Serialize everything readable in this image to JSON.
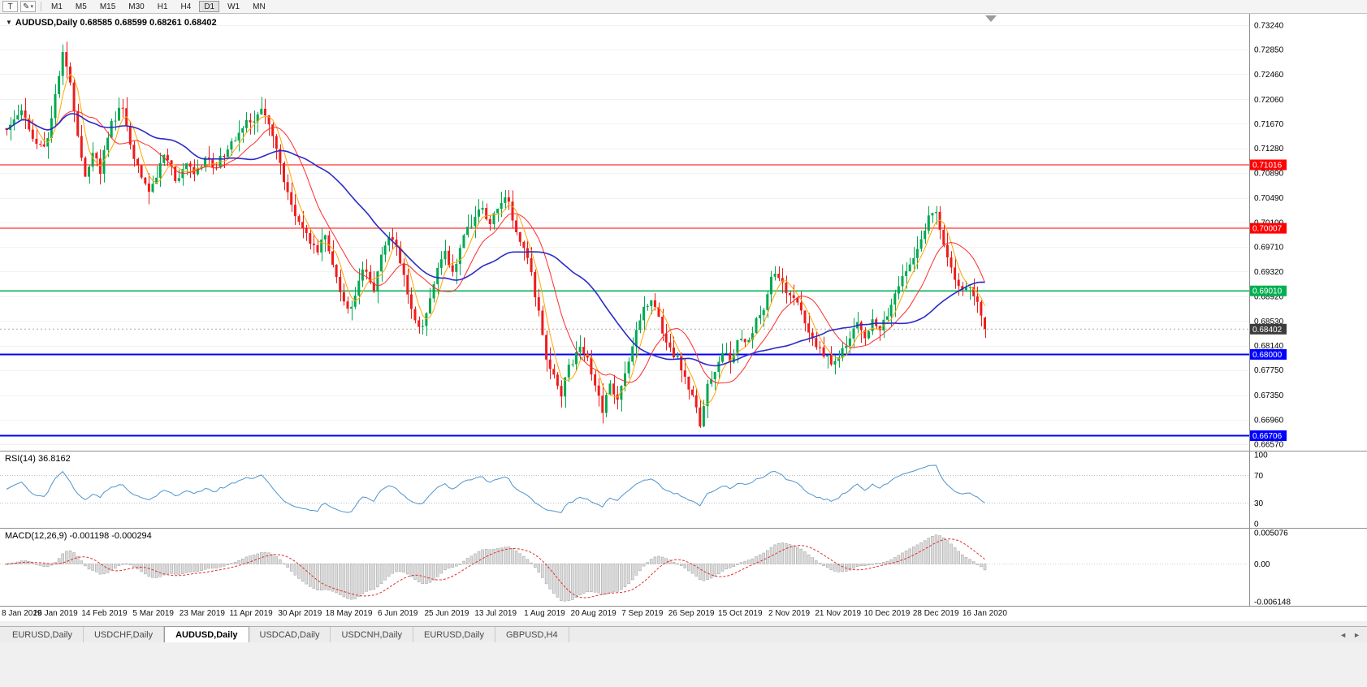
{
  "toolbar": {
    "text_tool_label": "T",
    "draw_tool_glyph": "✎",
    "dropdown_glyph": "▾",
    "timeframes": [
      {
        "label": "M1",
        "active": false
      },
      {
        "label": "M5",
        "active": false
      },
      {
        "label": "M15",
        "active": false
      },
      {
        "label": "M30",
        "active": false
      },
      {
        "label": "H1",
        "active": false
      },
      {
        "label": "H4",
        "active": false
      },
      {
        "label": "D1",
        "active": true
      },
      {
        "label": "W1",
        "active": false
      },
      {
        "label": "MN",
        "active": false
      }
    ]
  },
  "main_chart": {
    "collapse_icon": "▼",
    "symbol_line": "AUDUSD,Daily 0.68585 0.68599 0.68261 0.68402",
    "price_axis": [
      "0.73240",
      "0.72850",
      "0.72460",
      "0.72060",
      "0.71670",
      "0.71280",
      "0.70890",
      "0.70490",
      "0.70100",
      "0.69710",
      "0.69320",
      "0.68920",
      "0.68530",
      "0.68140",
      "0.67750",
      "0.67350",
      "0.66960",
      "0.66570"
    ],
    "levels": [
      {
        "price": "0.71016",
        "value": 0.71016,
        "color": "#FF0000",
        "width": 1.2,
        "role": "resistance"
      },
      {
        "price": "0.70007",
        "value": 0.70007,
        "color": "#FF0000",
        "width": 1.2,
        "role": "resistance"
      },
      {
        "price": "0.69010",
        "value": 0.6901,
        "color": "#00B050",
        "width": 1.5,
        "role": "pivot"
      },
      {
        "price": "0.68000",
        "value": 0.68,
        "color": "#0000FF",
        "width": 1.8,
        "role": "support"
      },
      {
        "price": "0.66706",
        "value": 0.66706,
        "color": "#0000FF",
        "width": 1.8,
        "role": "support"
      }
    ],
    "current_price": {
      "label": "0.68402",
      "value": 0.68402,
      "tag_color": "#3C3C3C"
    },
    "colors": {
      "bull": "#00A94F",
      "bear": "#EE1C1C"
    },
    "moving_averages": [
      {
        "period": 5,
        "color": "#FFA500",
        "width": 1
      },
      {
        "period": 13,
        "color": "#FF2B2B",
        "width": 1
      },
      {
        "period": 34,
        "color": "#2B2BC8",
        "width": 1.6
      }
    ]
  },
  "rsi_panel": {
    "label": "RSI(14) 36.8162",
    "value": 36.8162,
    "period": 14,
    "axis": [
      {
        "label": "100",
        "value": 100
      },
      {
        "label": "70",
        "value": 70
      },
      {
        "label": "30",
        "value": 30
      },
      {
        "label": "0",
        "value": 0
      }
    ],
    "guides": [
      70,
      30
    ],
    "line_color": "#4F94CD"
  },
  "macd_panel": {
    "label": "MACD(12,26,9) -0.001198 -0.000294",
    "main_value": -0.001198,
    "signal_value": -0.000294,
    "axis": [
      {
        "label": "0.005076",
        "value": 0.005076
      },
      {
        "label": "0.00",
        "value": 0
      },
      {
        "label": "-0.006148",
        "value": -0.006148
      }
    ],
    "histogram_fill": "#DBDBDB",
    "histogram_stroke": "#A0A0A0",
    "signal_color": "#E03030"
  },
  "time_axis": [
    "8 Jan 2019",
    "26 Jan 2019",
    "14 Feb 2019",
    "5 Mar 2019",
    "23 Mar 2019",
    "11 Apr 2019",
    "30 Apr 2019",
    "18 May 2019",
    "6 Jun 2019",
    "25 Jun 2019",
    "13 Jul 2019",
    "1 Aug 2019",
    "20 Aug 2019",
    "7 Sep 2019",
    "26 Sep 2019",
    "15 Oct 2019",
    "2 Nov 2019",
    "21 Nov 2019",
    "10 Dec 2019",
    "28 Dec 2019",
    "16 Jan 2020"
  ],
  "tabs": [
    {
      "label": "EURUSD,Daily",
      "active": false
    },
    {
      "label": "USDCHF,Daily",
      "active": false
    },
    {
      "label": "AUDUSD,Daily",
      "active": true
    },
    {
      "label": "USDCAD,Daily",
      "active": false
    },
    {
      "label": "USDCNH,Daily",
      "active": false
    },
    {
      "label": "EURUSD,Daily",
      "active": false
    },
    {
      "label": "GBPUSD,H4",
      "active": false
    }
  ],
  "tab_scroll": {
    "left": "◄",
    "right": "►"
  },
  "chart_data": {
    "type": "candlestick",
    "symbol": "AUDUSD",
    "timeframe": "Daily",
    "last_ohlc": {
      "open": 0.68585,
      "high": 0.68599,
      "low": 0.68261,
      "close": 0.68402
    },
    "visible_price_range": [
      0.6657,
      0.7324
    ],
    "visible_date_range": [
      "8 Jan 2019",
      "16 Jan 2020"
    ],
    "horizontal_levels": [
      0.71016,
      0.70007,
      0.6901,
      0.68,
      0.66706
    ],
    "indicators": [
      "RSI(14)=36.8162",
      "MACD(12,26,9)=-0.001198/-0.000294"
    ],
    "price_path": [
      [
        8,
        0.716
      ],
      [
        25,
        0.719
      ],
      [
        40,
        0.715
      ],
      [
        55,
        0.7125
      ],
      [
        68,
        0.721
      ],
      [
        78,
        0.7292
      ],
      [
        88,
        0.722
      ],
      [
        95,
        0.715
      ],
      [
        105,
        0.7085
      ],
      [
        115,
        0.7125
      ],
      [
        123,
        0.709
      ],
      [
        135,
        0.7165
      ],
      [
        150,
        0.7195
      ],
      [
        160,
        0.7135
      ],
      [
        172,
        0.7085
      ],
      [
        185,
        0.7055
      ],
      [
        195,
        0.7095
      ],
      [
        205,
        0.712
      ],
      [
        215,
        0.7075
      ],
      [
        228,
        0.7105
      ],
      [
        240,
        0.7085
      ],
      [
        252,
        0.7115
      ],
      [
        265,
        0.7095
      ],
      [
        280,
        0.713
      ],
      [
        295,
        0.7155
      ],
      [
        310,
        0.7175
      ],
      [
        325,
        0.719
      ],
      [
        335,
        0.715
      ],
      [
        345,
        0.71
      ],
      [
        355,
        0.705
      ],
      [
        365,
        0.7015
      ],
      [
        378,
        0.699
      ],
      [
        390,
        0.696
      ],
      [
        400,
        0.699
      ],
      [
        410,
        0.694
      ],
      [
        420,
        0.6895
      ],
      [
        430,
        0.687
      ],
      [
        440,
        0.691
      ],
      [
        450,
        0.694
      ],
      [
        460,
        0.6905
      ],
      [
        470,
        0.696
      ],
      [
        480,
        0.6985
      ],
      [
        490,
        0.696
      ],
      [
        500,
        0.6905
      ],
      [
        510,
        0.686
      ],
      [
        518,
        0.684
      ],
      [
        528,
        0.688
      ],
      [
        538,
        0.693
      ],
      [
        548,
        0.696
      ],
      [
        558,
        0.6935
      ],
      [
        568,
        0.6975
      ],
      [
        580,
        0.701
      ],
      [
        592,
        0.7035
      ],
      [
        605,
        0.701
      ],
      [
        615,
        0.7045
      ],
      [
        625,
        0.705
      ],
      [
        635,
        0.7
      ],
      [
        645,
        0.697
      ],
      [
        655,
        0.692
      ],
      [
        665,
        0.686
      ],
      [
        672,
        0.68
      ],
      [
        680,
        0.6775
      ],
      [
        690,
        0.673
      ],
      [
        697,
        0.677
      ],
      [
        705,
        0.679
      ],
      [
        715,
        0.681
      ],
      [
        725,
        0.6785
      ],
      [
        735,
        0.674
      ],
      [
        742,
        0.67
      ],
      [
        750,
        0.6755
      ],
      [
        760,
        0.673
      ],
      [
        768,
        0.6765
      ],
      [
        778,
        0.681
      ],
      [
        788,
        0.6855
      ],
      [
        798,
        0.6885
      ],
      [
        806,
        0.6875
      ],
      [
        815,
        0.684
      ],
      [
        825,
        0.681
      ],
      [
        835,
        0.679
      ],
      [
        845,
        0.676
      ],
      [
        855,
        0.6725
      ],
      [
        862,
        0.669
      ],
      [
        870,
        0.6745
      ],
      [
        880,
        0.6775
      ],
      [
        890,
        0.681
      ],
      [
        900,
        0.679
      ],
      [
        910,
        0.6825
      ],
      [
        920,
        0.681
      ],
      [
        930,
        0.685
      ],
      [
        940,
        0.6875
      ],
      [
        950,
        0.692
      ],
      [
        958,
        0.693
      ],
      [
        966,
        0.69
      ],
      [
        975,
        0.689
      ],
      [
        985,
        0.687
      ],
      [
        995,
        0.684
      ],
      [
        1005,
        0.6815
      ],
      [
        1015,
        0.68
      ],
      [
        1025,
        0.6785
      ],
      [
        1035,
        0.68
      ],
      [
        1045,
        0.682
      ],
      [
        1055,
        0.685
      ],
      [
        1065,
        0.683
      ],
      [
        1075,
        0.6855
      ],
      [
        1085,
        0.684
      ],
      [
        1095,
        0.687
      ],
      [
        1105,
        0.6905
      ],
      [
        1115,
        0.693
      ],
      [
        1125,
        0.696
      ],
      [
        1135,
        0.699
      ],
      [
        1145,
        0.702
      ],
      [
        1152,
        0.703
      ],
      [
        1160,
        0.699
      ],
      [
        1168,
        0.695
      ],
      [
        1176,
        0.692
      ],
      [
        1184,
        0.69
      ],
      [
        1192,
        0.691
      ],
      [
        1200,
        0.689
      ],
      [
        1206,
        0.6876
      ],
      [
        1212,
        0.684
      ]
    ]
  }
}
